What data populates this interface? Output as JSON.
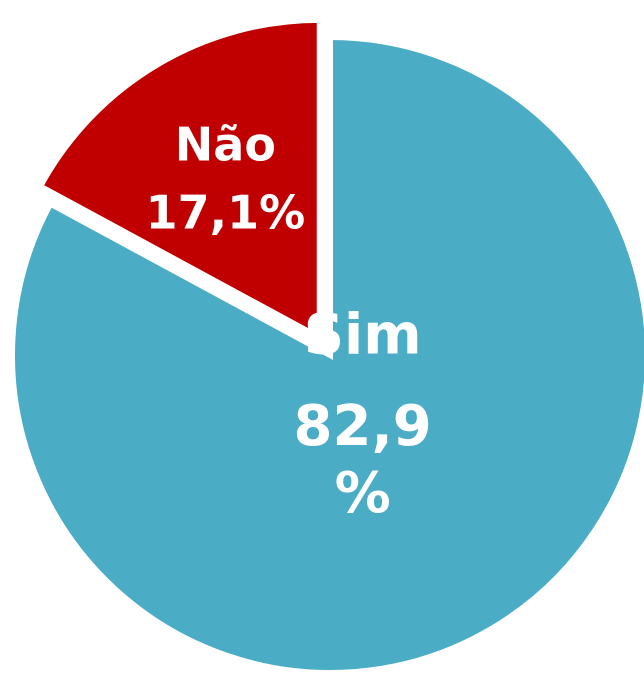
{
  "chart_data": {
    "type": "pie",
    "categories": [
      "Sim",
      "Não"
    ],
    "values": [
      82.9,
      17.1
    ],
    "value_labels": [
      "82,9%",
      "17,1%"
    ],
    "colors": [
      "#4bacc6",
      "#c00000"
    ],
    "explode": [
      false,
      true
    ]
  }
}
